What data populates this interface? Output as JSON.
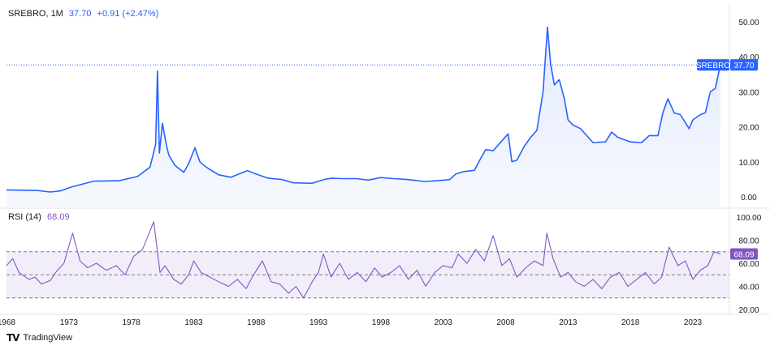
{
  "legend": {
    "symbol": "SREBRO, 1M",
    "price": "37.70",
    "change": "+0.91 (+2.47%)"
  },
  "rsi_legend": {
    "label": "RSI (14)",
    "value": "68.09"
  },
  "price_tag": {
    "symbol": "SREBRO",
    "value": "37.70"
  },
  "rsi_tag": {
    "value": "68.09"
  },
  "footer": {
    "brand": "TradingView"
  },
  "colors": {
    "price_line": "#2962ff",
    "price_fill": "#e3eafd",
    "rsi_line": "#7e57c2",
    "rsi_band": "#ede7f6",
    "grid_text": "#131722"
  },
  "chart_data": [
    {
      "type": "area",
      "series": [
        {
          "name": "SREBRO",
          "x": [
            1968.0,
            1970.5,
            1971.5,
            1972.3,
            1973.2,
            1975.0,
            1977.0,
            1978.5,
            1979.5,
            1979.95,
            1980.1,
            1980.25,
            1980.5,
            1980.8,
            1981.0,
            1981.5,
            1982.2,
            1982.6,
            1983.1,
            1983.5,
            1984.0,
            1985.0,
            1986.0,
            1987.3,
            1988.0,
            1989.0,
            1990.0,
            1991.0,
            1992.5,
            1993.5,
            1994.0,
            1995.0,
            1996.0,
            1997.0,
            1998.0,
            1999.0,
            2000.0,
            2001.5,
            2002.5,
            2003.5,
            2004.0,
            2004.6,
            2005.5,
            2006.0,
            2006.4,
            2007.0,
            2008.2,
            2008.5,
            2008.9,
            2009.5,
            2010.0,
            2010.5,
            2011.0,
            2011.35,
            2011.6,
            2011.9,
            2012.3,
            2012.7,
            2013.0,
            2013.4,
            2014.0,
            2015.0,
            2016.0,
            2016.5,
            2017.0,
            2018.0,
            2018.9,
            2019.5,
            2020.2,
            2020.6,
            2021.0,
            2021.5,
            2022.0,
            2022.7,
            2023.0,
            2023.6,
            2024.0,
            2024.4,
            2024.8,
            2025.2
          ],
          "values": [
            2.0,
            1.8,
            1.4,
            1.7,
            2.8,
            4.5,
            4.6,
            5.8,
            8.5,
            15.0,
            36.0,
            12.5,
            21.0,
            15.0,
            12.0,
            9.0,
            7.0,
            9.5,
            14.0,
            10.0,
            8.5,
            6.3,
            5.6,
            7.5,
            6.5,
            5.3,
            5.0,
            4.0,
            3.9,
            5.0,
            5.3,
            5.2,
            5.2,
            4.8,
            5.5,
            5.2,
            5.0,
            4.4,
            4.6,
            4.9,
            6.5,
            7.2,
            7.6,
            11.0,
            13.5,
            13.2,
            18.0,
            10.0,
            10.5,
            14.5,
            17.0,
            19.0,
            30.0,
            48.5,
            38.0,
            32.0,
            33.5,
            28.0,
            22.0,
            20.5,
            19.5,
            15.5,
            15.7,
            18.5,
            17.0,
            15.7,
            15.5,
            17.5,
            17.5,
            24.0,
            28.0,
            24.0,
            23.5,
            19.5,
            22.0,
            23.5,
            24.0,
            30.0,
            31.0,
            37.7
          ],
          "ylim": [
            0,
            50
          ]
        }
      ],
      "x_ticks": [
        "1968",
        "1973",
        "1978",
        "1983",
        "1988",
        "1993",
        "1998",
        "2003",
        "2008",
        "2013",
        "2018",
        "2023"
      ],
      "y_ticks": [
        "0.00",
        "10.00",
        "20.00",
        "30.00",
        "40.00",
        "50.00"
      ],
      "last_value": 37.7
    },
    {
      "type": "line",
      "series": [
        {
          "name": "RSI (14)",
          "x": [
            1968.0,
            1968.5,
            1969.0,
            1969.8,
            1970.3,
            1970.8,
            1971.5,
            1972.0,
            1972.6,
            1973.3,
            1973.9,
            1974.5,
            1975.2,
            1976.0,
            1976.8,
            1977.5,
            1978.2,
            1978.9,
            1979.5,
            1979.8,
            1980.3,
            1980.7,
            1981.4,
            1982.0,
            1982.6,
            1983.0,
            1983.6,
            1984.3,
            1985.0,
            1985.8,
            1986.5,
            1987.2,
            1987.8,
            1988.5,
            1989.2,
            1989.9,
            1990.6,
            1991.2,
            1991.8,
            1992.5,
            1993.0,
            1993.4,
            1994.0,
            1994.7,
            1995.4,
            1996.1,
            1996.8,
            1997.5,
            1998.1,
            1998.8,
            1999.5,
            2000.2,
            2000.9,
            2001.6,
            2002.3,
            2003.0,
            2003.7,
            2004.2,
            2004.9,
            2005.6,
            2006.3,
            2007.0,
            2007.7,
            2008.3,
            2008.9,
            2009.6,
            2010.3,
            2011.0,
            2011.3,
            2011.8,
            2012.4,
            2013.0,
            2013.6,
            2014.3,
            2015.0,
            2015.7,
            2016.4,
            2017.1,
            2017.8,
            2018.5,
            2019.2,
            2019.9,
            2020.5,
            2021.1,
            2021.8,
            2022.4,
            2023.0,
            2023.6,
            2024.2,
            2024.7,
            2025.2
          ],
          "values": [
            58,
            64,
            52,
            46,
            48,
            42,
            45,
            53,
            60,
            86,
            62,
            56,
            60,
            54,
            58,
            50,
            66,
            72,
            88,
            96,
            52,
            58,
            46,
            42,
            50,
            62,
            52,
            48,
            44,
            40,
            46,
            38,
            50,
            62,
            44,
            42,
            34,
            40,
            30,
            44,
            52,
            68,
            48,
            60,
            46,
            52,
            44,
            56,
            48,
            52,
            58,
            46,
            54,
            40,
            52,
            58,
            56,
            68,
            60,
            72,
            62,
            84,
            58,
            64,
            48,
            56,
            62,
            58,
            86,
            64,
            48,
            52,
            44,
            40,
            46,
            38,
            48,
            52,
            40,
            46,
            52,
            42,
            48,
            74,
            58,
            62,
            46,
            54,
            58,
            70,
            68
          ],
          "ylim": [
            20,
            100
          ],
          "bands": [
            30,
            50,
            70
          ]
        }
      ],
      "y_ticks": [
        "20.00",
        "40.00",
        "60.00",
        "80.00",
        "100.00"
      ],
      "last_value": 68.09
    }
  ]
}
